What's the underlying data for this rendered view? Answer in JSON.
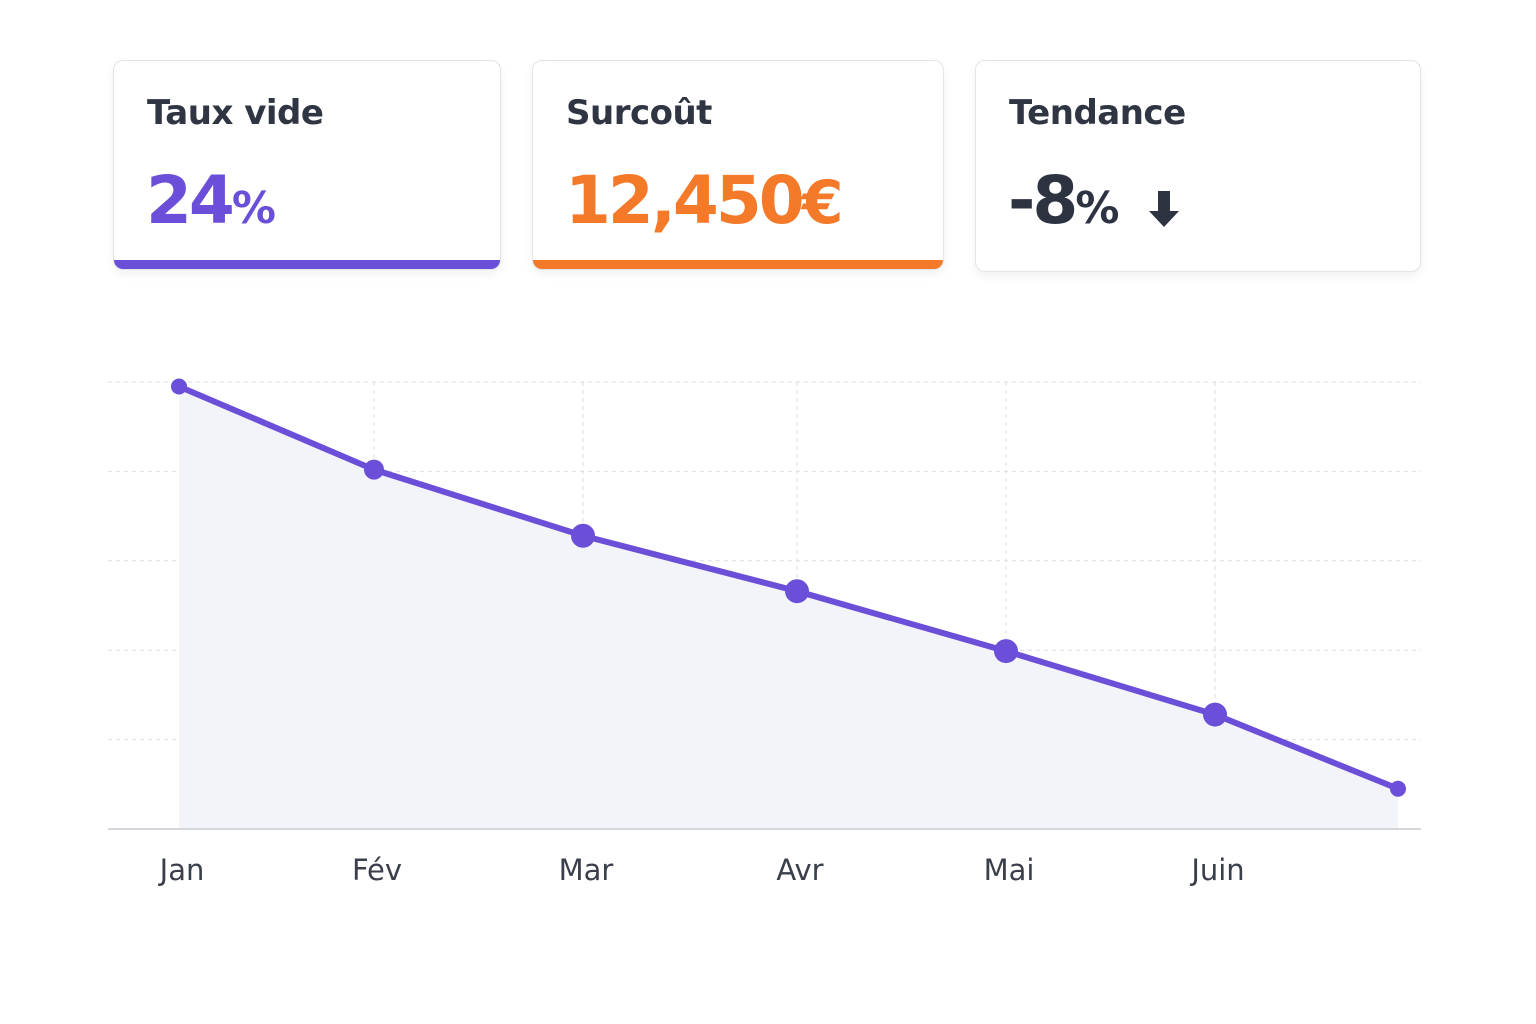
{
  "cards": [
    {
      "title": "Taux vide",
      "value": "24",
      "unit": "%",
      "color": "#6b4fd8"
    },
    {
      "title": "Surcoût",
      "value": "12,450",
      "unit": "€",
      "color": "#f47a2a"
    },
    {
      "title": "Tendance",
      "value": "-8",
      "unit": "%",
      "color": "#2d3340",
      "icon": "arrow-down-icon"
    }
  ],
  "chart_data": {
    "type": "area",
    "categories": [
      "Jan",
      "Fév",
      "Mar",
      "Avr",
      "Mai",
      "Juin",
      ""
    ],
    "values": [
      4.95,
      4.02,
      3.28,
      2.66,
      1.99,
      1.28,
      0.45
    ],
    "ylim": [
      0,
      5
    ],
    "grid": true,
    "line_color": "#6b4fd8",
    "fill_color": "#f3f3fa"
  }
}
